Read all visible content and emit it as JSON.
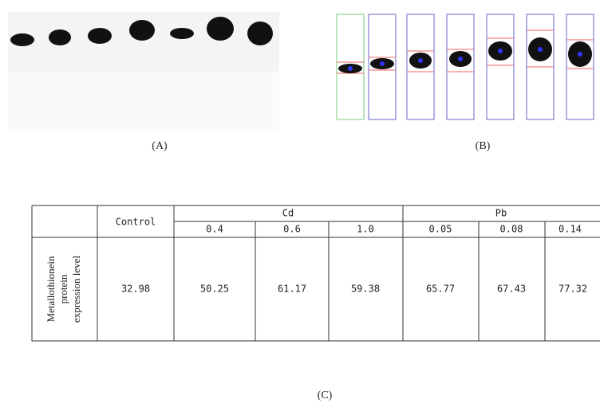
{
  "panels": {
    "a": "(A)",
    "b": "(B)",
    "c": "(C)"
  },
  "table": {
    "header": {
      "control": "Control",
      "cd": "Cd",
      "pb": "Pb"
    },
    "subheader": [
      "0.4",
      "0.6",
      "1.0",
      "0.05",
      "0.08",
      "0.14"
    ],
    "row_label": [
      "Metallothionein",
      "protein",
      "expression level"
    ],
    "values": [
      "32.98",
      "50.25",
      "61.17",
      "59.38",
      "65.77",
      "67.43",
      "77.32"
    ]
  }
}
